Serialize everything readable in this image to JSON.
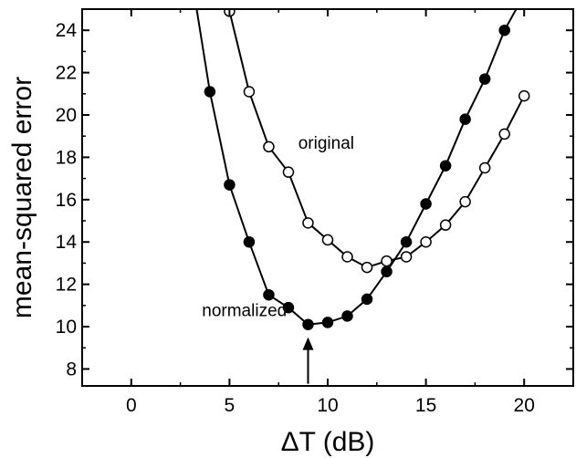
{
  "chart_data": {
    "type": "line",
    "title": "",
    "xlabel": "ΔT (dB)",
    "ylabel": "mean-squared error",
    "xlim": [
      -2.5,
      22.5
    ],
    "ylim": [
      7.2,
      25
    ],
    "x_ticks": [
      0,
      5,
      10,
      15,
      20
    ],
    "x_tick_labels": [
      "0",
      "5",
      "10",
      "15",
      "20"
    ],
    "y_ticks": [
      8,
      10,
      12,
      14,
      16,
      18,
      20,
      22,
      24
    ],
    "y_tick_labels": [
      "8",
      "10",
      "12",
      "14",
      "16",
      "18",
      "20",
      "22",
      "24"
    ],
    "grid": false,
    "legend": "none",
    "series": [
      {
        "name": "original",
        "marker": "open-circle",
        "x": [
          5,
          6,
          7,
          8,
          9,
          10,
          11,
          12,
          13,
          14,
          15,
          16,
          17,
          18,
          19,
          20
        ],
        "y": [
          24.9,
          21.1,
          18.5,
          17.3,
          14.9,
          14.1,
          13.3,
          12.8,
          13.1,
          13.3,
          14.0,
          14.8,
          15.9,
          17.5,
          19.1,
          20.9
        ],
        "extends_above_from_x": 4.8
      },
      {
        "name": "normalized",
        "marker": "filled-circle",
        "x": [
          4,
          5,
          6,
          7,
          8,
          9,
          10,
          11,
          12,
          13,
          14,
          15,
          16,
          17,
          18,
          19
        ],
        "y": [
          21.1,
          16.7,
          14.0,
          11.5,
          10.9,
          10.1,
          10.2,
          10.5,
          11.3,
          12.6,
          14.0,
          15.8,
          17.6,
          19.8,
          21.7,
          24.0
        ],
        "extends_above_from_x": 3.3,
        "extends_above_to_x": 19.7
      }
    ],
    "annotations": [
      {
        "text": "original",
        "x": 8.5,
        "y": 18.4
      },
      {
        "text": "normalized",
        "x": 3.6,
        "y": 10.5
      },
      {
        "arrow_to_x": 9,
        "arrow_from_y": 7.3,
        "arrow_to_y": 9.5
      }
    ]
  }
}
